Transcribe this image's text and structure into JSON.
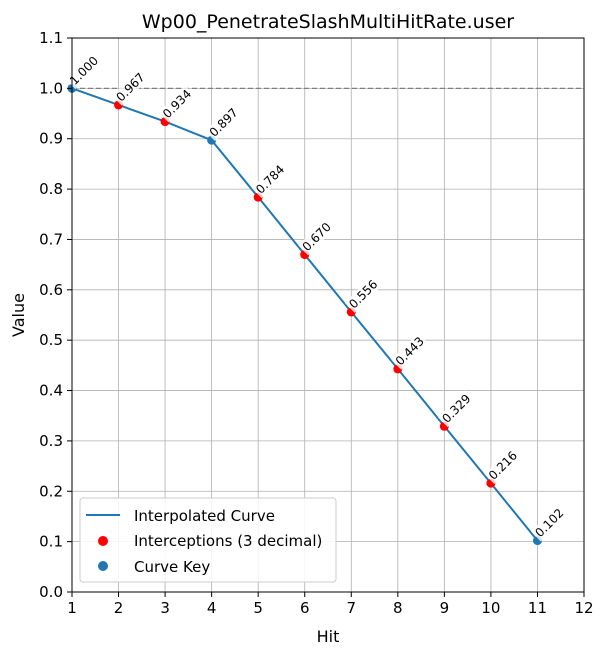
{
  "chart_data": {
    "type": "line",
    "title": "Wp00_PenetrateSlashMultiHitRate.user",
    "xlabel": "Hit",
    "ylabel": "Value",
    "xlim": [
      1,
      12
    ],
    "ylim": [
      0.0,
      1.1
    ],
    "xticks": [
      "1",
      "2",
      "3",
      "4",
      "5",
      "6",
      "7",
      "8",
      "9",
      "10",
      "11",
      "12"
    ],
    "yticks": [
      "0.0",
      "0.1",
      "0.2",
      "0.3",
      "0.4",
      "0.5",
      "0.6",
      "0.7",
      "0.8",
      "0.9",
      "1.0",
      "1.1"
    ],
    "grid": true,
    "reference_line": {
      "y": 1.0,
      "style": "dashed",
      "color": "#808080"
    },
    "series": [
      {
        "name": "Interpolated Curve",
        "kind": "line",
        "color": "#1f77b4",
        "x": [
          1,
          2,
          3,
          4,
          5,
          6,
          7,
          8,
          9,
          10,
          11
        ],
        "y": [
          1.0,
          0.967,
          0.934,
          0.897,
          0.784,
          0.67,
          0.556,
          0.443,
          0.329,
          0.216,
          0.102
        ]
      },
      {
        "name": "Interceptions (3 decimal)",
        "kind": "scatter",
        "color": "#ff0000",
        "x": [
          2,
          3,
          5,
          6,
          7,
          8,
          9,
          10
        ],
        "y": [
          0.967,
          0.934,
          0.784,
          0.67,
          0.556,
          0.443,
          0.329,
          0.216
        ]
      },
      {
        "name": "Curve Key",
        "kind": "scatter",
        "color": "#1f77b4",
        "x": [
          1,
          4,
          11
        ],
        "y": [
          1.0,
          0.897,
          0.102
        ]
      }
    ],
    "data_labels": [
      {
        "x": 1,
        "y": 1.0,
        "text": "1.000"
      },
      {
        "x": 2,
        "y": 0.967,
        "text": "0.967"
      },
      {
        "x": 3,
        "y": 0.934,
        "text": "0.934"
      },
      {
        "x": 4,
        "y": 0.897,
        "text": "0.897"
      },
      {
        "x": 5,
        "y": 0.784,
        "text": "0.784"
      },
      {
        "x": 6,
        "y": 0.67,
        "text": "0.670"
      },
      {
        "x": 7,
        "y": 0.556,
        "text": "0.556"
      },
      {
        "x": 8,
        "y": 0.443,
        "text": "0.443"
      },
      {
        "x": 9,
        "y": 0.329,
        "text": "0.329"
      },
      {
        "x": 10,
        "y": 0.216,
        "text": "0.216"
      },
      {
        "x": 11,
        "y": 0.102,
        "text": "0.102"
      }
    ],
    "legend": {
      "position": "lower-left",
      "entries": [
        "Interpolated Curve",
        "Interceptions (3 decimal)",
        "Curve Key"
      ]
    }
  }
}
